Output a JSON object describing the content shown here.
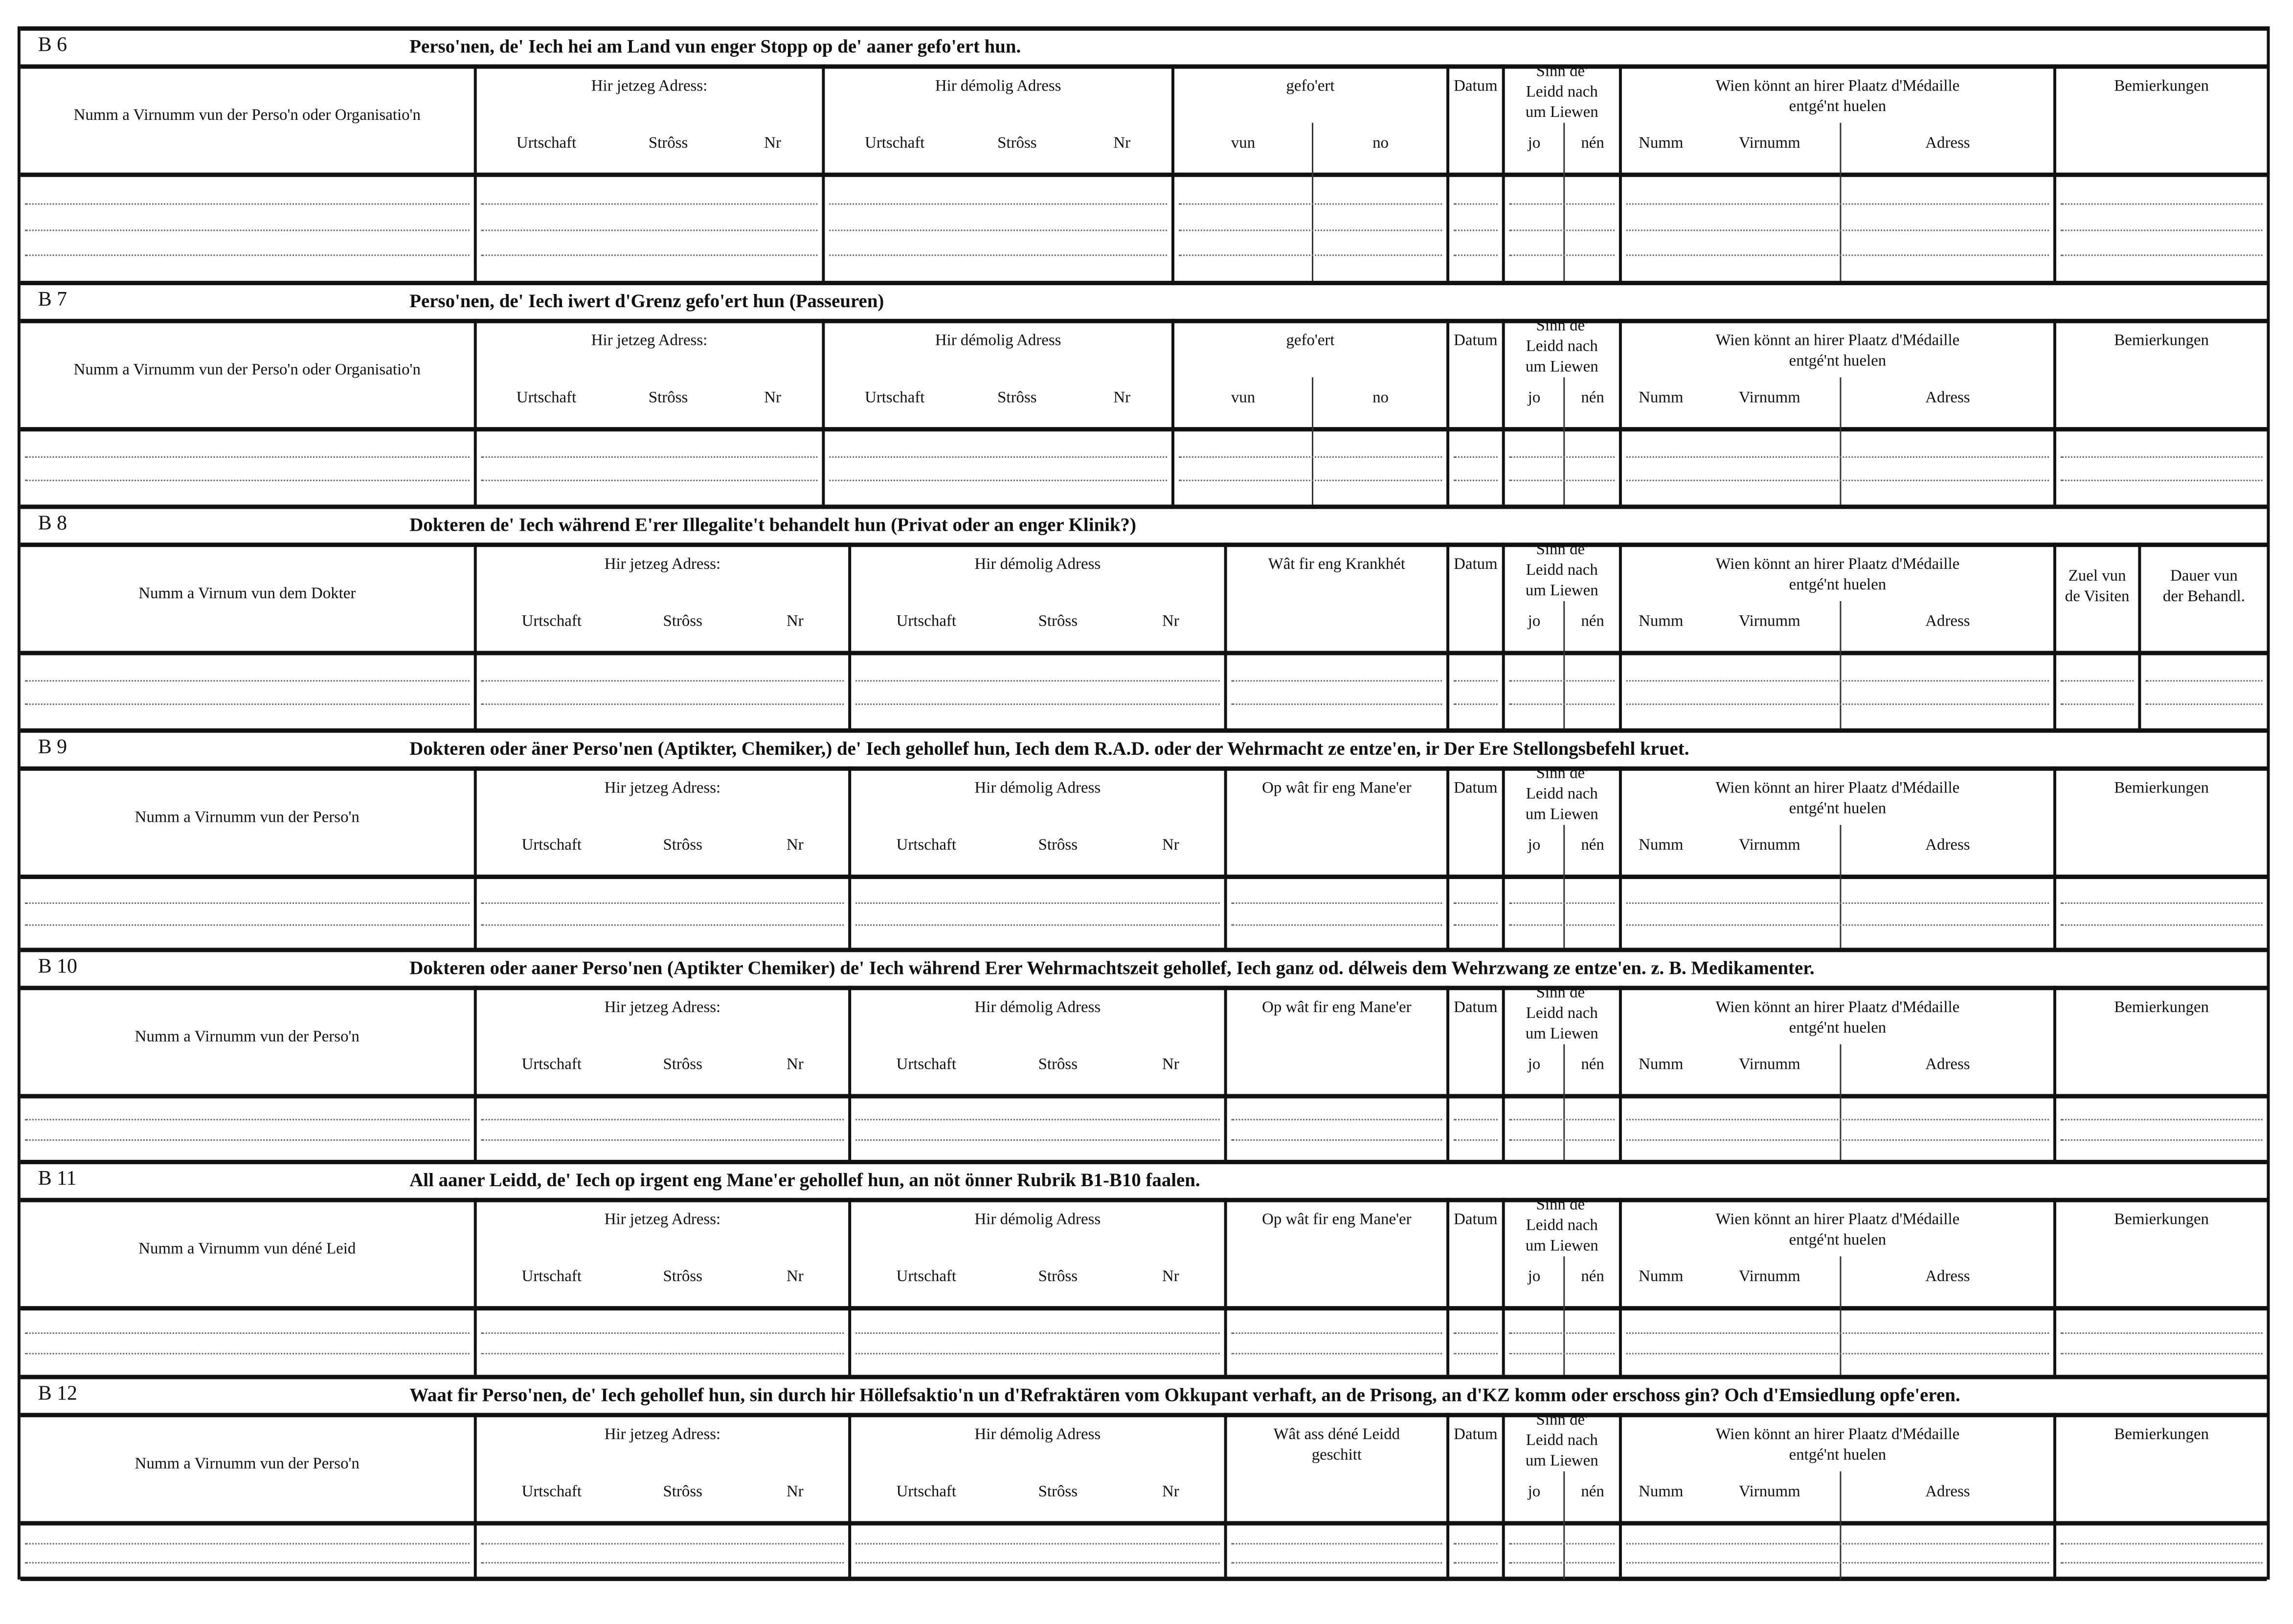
{
  "sections": [
    {
      "code": "B 6",
      "title": "Perso'nen, de' Iech hei am Land vun enger Stopp  op de' aaner gefo'ert hun.",
      "columns": [
        {
          "label": "Numm a Virnumm vun der Perso'n oder Organisatio'n",
          "subs": []
        },
        {
          "label": "Hir jetzeg Adress:",
          "subs": [
            "Urtschaft",
            "Strôss",
            "Nr"
          ]
        },
        {
          "label": "Hir démolig Adress",
          "subs": [
            "Urtschaft",
            "Strôss",
            "Nr"
          ]
        },
        {
          "label": "gefo'ert",
          "subs": [
            "vun",
            "no"
          ]
        },
        {
          "label": "Datum",
          "subs": []
        },
        {
          "label": "Sinn  de'\nLeidd  nach\num Liewen",
          "subs": [
            "jo",
            "nén"
          ]
        },
        {
          "label": "Wien  könnt  an  hirer Plaatz  d'Médaille\nentgé'nt huelen",
          "subs": [
            "Numm",
            "Virnumm",
            "Adress"
          ]
        },
        {
          "label": "Bemierkungen",
          "subs": []
        }
      ]
    },
    {
      "code": "B 7",
      "title": "Perso'nen, de' Iech iwert d'Grenz gefo'ert hun (Passeuren)",
      "columns": [
        {
          "label": "Numm a Virnumm vun der Perso'n oder Organisatio'n",
          "subs": []
        },
        {
          "label": "Hir jetzeg Adress:",
          "subs": [
            "Urtschaft",
            "Strôss",
            "Nr"
          ]
        },
        {
          "label": "Hir démolig Adress",
          "subs": [
            "Urtschaft",
            "Strôss",
            "Nr"
          ]
        },
        {
          "label": "gefo'ert",
          "subs": [
            "vun",
            "no"
          ]
        },
        {
          "label": "Datum",
          "subs": []
        },
        {
          "label": "Sinn  de'\nLeidd  nach\num Liewen",
          "subs": [
            "jo",
            "nén"
          ]
        },
        {
          "label": "Wien  könnt  an  hirer Plaatz  d'Médaille\nentgé'nt huelen",
          "subs": [
            "Numm",
            "Virnumm",
            "Adress"
          ]
        },
        {
          "label": "Bemierkungen",
          "subs": []
        }
      ]
    },
    {
      "code": "B 8",
      "title": "Dokteren de' Iech während E'rer Illegalite't behandelt hun (Privat  oder an enger Klinik?)",
      "columns": [
        {
          "label": "Numm a Virnum vun dem Dokter",
          "subs": []
        },
        {
          "label": "Hir jetzeg Adress:",
          "subs": [
            "Urtschaft",
            "Strôss",
            "Nr"
          ]
        },
        {
          "label": "Hir démolig Adress",
          "subs": [
            "Urtschaft",
            "Strôss",
            "Nr"
          ]
        },
        {
          "label": "Wât fir eng Krankhét",
          "subs": []
        },
        {
          "label": "Datum",
          "subs": []
        },
        {
          "label": "Sinn  de'\nLeidd  nach\num Liewen",
          "subs": [
            "jo",
            "nén"
          ]
        },
        {
          "label": "Wien  könnt  an  hirer Plaatz  d'Médaille\nentgé'nt huelen",
          "subs": [
            "Numm",
            "Virnumm",
            "Adress"
          ]
        },
        {
          "label": "Zuel vun\nde Visiten",
          "subs": []
        },
        {
          "label": "Dauer vun\nder Behandl.",
          "subs": []
        }
      ]
    },
    {
      "code": "B 9",
      "title": "Dokteren oder äner Perso'nen (Aptikter, Chemiker,) de' Iech gehollef hun, Iech dem R.A.D. oder der Wehrmacht ze entze'en, ir Der Ere Stellongsbefehl kruet.",
      "columns": [
        {
          "label": "Numm a Virnumm vun der Perso'n",
          "subs": []
        },
        {
          "label": "Hir jetzeg Adress:",
          "subs": [
            "Urtschaft",
            "Strôss",
            "Nr"
          ]
        },
        {
          "label": "Hir démolig Adress",
          "subs": [
            "Urtschaft",
            "Strôss",
            "Nr"
          ]
        },
        {
          "label": "Op wât fir eng Mane'er",
          "subs": []
        },
        {
          "label": "Datum",
          "subs": []
        },
        {
          "label": "Sinn  de'\nLeidd  nach\num Liewen",
          "subs": [
            "jo",
            "nén"
          ]
        },
        {
          "label": "Wien  könnt  an  hirer Plaatz  d'Médaille\nentgé'nt huelen",
          "subs": [
            "Numm",
            "Virnumm",
            "Adress"
          ]
        },
        {
          "label": "Bemierkungen",
          "subs": []
        }
      ]
    },
    {
      "code": "B 10",
      "title": "Dokteren oder aaner Perso'nen (Aptikter Chemiker) de' Iech während Erer Wehrmachtszeit gehollef, Iech ganz od. délweis dem Wehrzwang ze entze'en. z. B. Medikamenter.",
      "columns": [
        {
          "label": "Numm a Virnumm vun der Perso'n",
          "subs": []
        },
        {
          "label": "Hir jetzeg Adress:",
          "subs": [
            "Urtschaft",
            "Strôss",
            "Nr"
          ]
        },
        {
          "label": "Hir démolig Adress",
          "subs": [
            "Urtschaft",
            "Strôss",
            "Nr"
          ]
        },
        {
          "label": "Op wât fir eng Mane'er",
          "subs": []
        },
        {
          "label": "Datum",
          "subs": []
        },
        {
          "label": "Sinn  de'\nLeidd  nach\num Liewen",
          "subs": [
            "jo",
            "nén"
          ]
        },
        {
          "label": "Wien  könnt  an  hirer Plaatz  d'Médaille\nentgé'nt huelen",
          "subs": [
            "Numm",
            "Virnumm",
            "Adress"
          ]
        },
        {
          "label": "Bemierkungen",
          "subs": []
        }
      ]
    },
    {
      "code": "B 11",
      "title": "All aaner Leidd, de' Iech op irgent eng Mane'er  gehollef hun, an nöt önner Rubrik B1-B10 faalen.",
      "columns": [
        {
          "label": "Numm a Virnumm vun déné Leid",
          "subs": []
        },
        {
          "label": "Hir jetzeg Adress:",
          "subs": [
            "Urtschaft",
            "Strôss",
            "Nr"
          ]
        },
        {
          "label": "Hir démolig Adress",
          "subs": [
            "Urtschaft",
            "Strôss",
            "Nr"
          ]
        },
        {
          "label": "Op wât fir eng Mane'er",
          "subs": []
        },
        {
          "label": "Datum",
          "subs": []
        },
        {
          "label": "Sinn  de'\nLeidd  nach\num Liewen",
          "subs": [
            "jo",
            "nén"
          ]
        },
        {
          "label": "Wien  könnt  an  hirer Plaatz  d'Médaille\nentgé'nt huelen",
          "subs": [
            "Numm",
            "Virnumm",
            "Adress"
          ]
        },
        {
          "label": "Bemierkungen",
          "subs": []
        }
      ]
    },
    {
      "code": "B 12",
      "title": "Waat fir Perso'nen, de' Iech gehollef hun, sin durch hir Höllefsaktio'n un d'Refraktären vom Okkupant verhaft, an de Prisong, an d'KZ komm oder  erschoss gin? Och d'Emsiedlung opfe'eren.",
      "columns": [
        {
          "label": "Numm a Virnumm vun der Perso'n",
          "subs": []
        },
        {
          "label": "Hir jetzeg Adress:",
          "subs": [
            "Urtschaft",
            "Strôss",
            "Nr"
          ]
        },
        {
          "label": "Hir démolig Adress",
          "subs": [
            "Urtschaft",
            "Strôss",
            "Nr"
          ]
        },
        {
          "label": "Wât ass déné Leidd\ngeschitt",
          "subs": []
        },
        {
          "label": "Datum",
          "subs": []
        },
        {
          "label": "Sinn  de'\nLeidd  nach\num Liewen",
          "subs": [
            "jo",
            "nén"
          ]
        },
        {
          "label": "Wien  könnt  an  hirer Plaatz  d'Médaille\nentgé'nt huelen",
          "subs": [
            "Numm",
            "Virnumm",
            "Adress"
          ]
        },
        {
          "label": "Bemierkungen",
          "subs": []
        }
      ]
    }
  ]
}
